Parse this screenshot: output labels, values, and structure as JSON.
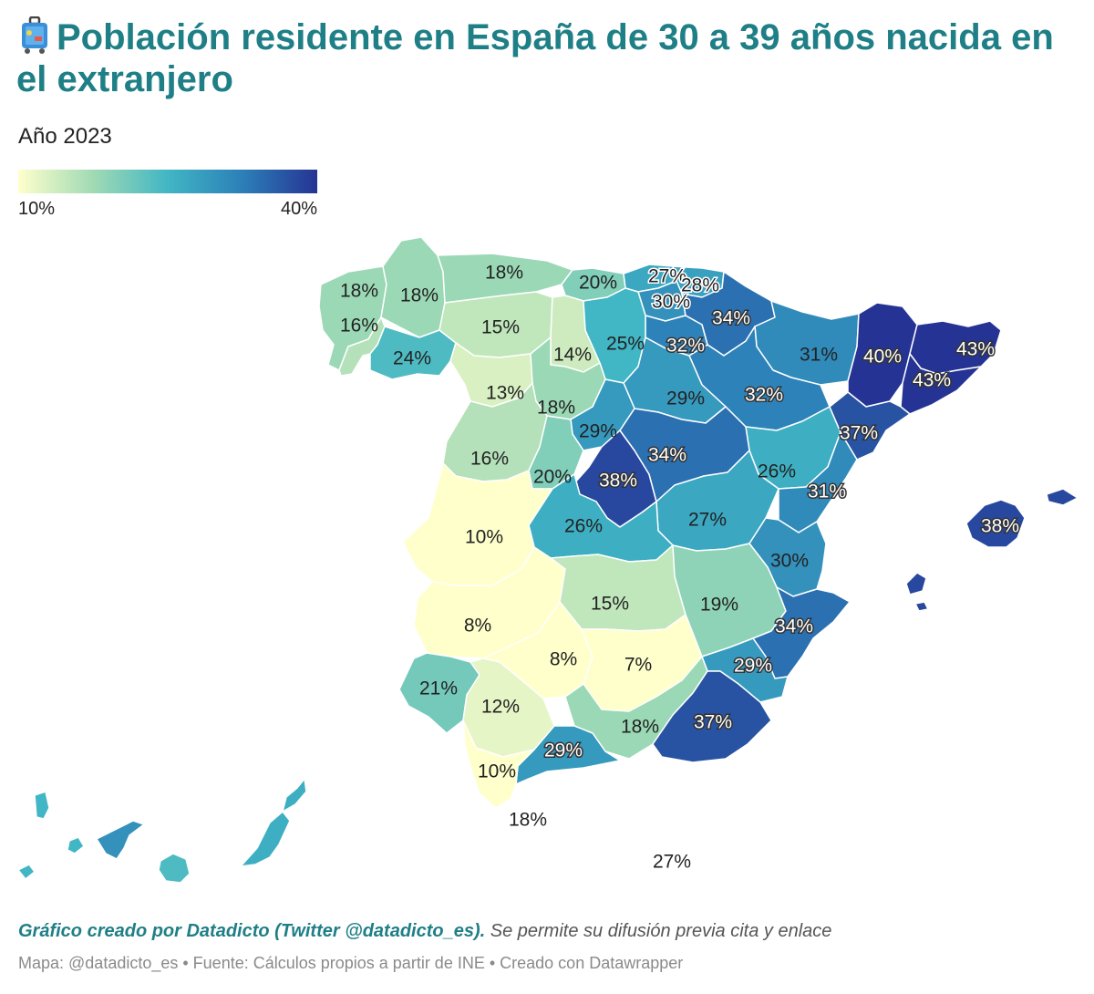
{
  "header": {
    "title": "Población residente en España de 30 a 39 años nacida en el extranjero",
    "subtitle": "Año 2023",
    "emoji_icon": "luggage-icon"
  },
  "legend": {
    "min_label": "10%",
    "max_label": "40%",
    "colors": [
      "#ffffcc",
      "#a1dab4",
      "#41b6c4",
      "#2c7fb8",
      "#253494"
    ]
  },
  "map": {
    "regions": [
      {
        "id": "a-coruna",
        "label": "18%",
        "value": 18
      },
      {
        "id": "lugo",
        "label": "18%",
        "value": 18
      },
      {
        "id": "pontevedra",
        "label": "16%",
        "value": 16
      },
      {
        "id": "ourense",
        "label": "24%",
        "value": 24
      },
      {
        "id": "asturias",
        "label": "18%",
        "value": 18
      },
      {
        "id": "cantabria",
        "label": "20%",
        "value": 20
      },
      {
        "id": "bizkaia",
        "label": "27%",
        "value": 27
      },
      {
        "id": "gipuzkoa",
        "label": "28%",
        "value": 28
      },
      {
        "id": "araba",
        "label": "30%",
        "value": 30
      },
      {
        "id": "navarra",
        "label": "34%",
        "value": 34
      },
      {
        "id": "la-rioja",
        "label": "32%",
        "value": 32
      },
      {
        "id": "huesca",
        "label": "31%",
        "value": 31
      },
      {
        "id": "lleida",
        "label": "40%",
        "value": 40
      },
      {
        "id": "girona",
        "label": "43%",
        "value": 43
      },
      {
        "id": "barcelona",
        "label": "43%",
        "value": 43
      },
      {
        "id": "tarragona",
        "label": "37%",
        "value": 37
      },
      {
        "id": "zaragoza",
        "label": "32%",
        "value": 32
      },
      {
        "id": "leon",
        "label": "15%",
        "value": 15
      },
      {
        "id": "palencia",
        "label": "14%",
        "value": 14
      },
      {
        "id": "burgos",
        "label": "25%",
        "value": 25
      },
      {
        "id": "soria",
        "label": "29%",
        "value": 29
      },
      {
        "id": "zamora",
        "label": "13%",
        "value": 13
      },
      {
        "id": "valladolid",
        "label": "18%",
        "value": 18
      },
      {
        "id": "segovia",
        "label": "29%",
        "value": 29
      },
      {
        "id": "guadalajara",
        "label": "34%",
        "value": 34
      },
      {
        "id": "teruel",
        "label": "26%",
        "value": 26
      },
      {
        "id": "castellon",
        "label": "31%",
        "value": 31
      },
      {
        "id": "salamanca",
        "label": "16%",
        "value": 16
      },
      {
        "id": "avila",
        "label": "20%",
        "value": 20
      },
      {
        "id": "madrid",
        "label": "38%",
        "value": 38
      },
      {
        "id": "cuenca",
        "label": "27%",
        "value": 27
      },
      {
        "id": "toledo",
        "label": "26%",
        "value": 26
      },
      {
        "id": "valencia",
        "label": "30%",
        "value": 30
      },
      {
        "id": "caceres",
        "label": "10%",
        "value": 10
      },
      {
        "id": "badajoz",
        "label": "8%",
        "value": 8
      },
      {
        "id": "ciudad-real",
        "label": "15%",
        "value": 15
      },
      {
        "id": "albacete",
        "label": "19%",
        "value": 19
      },
      {
        "id": "alicante",
        "label": "34%",
        "value": 34
      },
      {
        "id": "cordoba",
        "label": "8%",
        "value": 8
      },
      {
        "id": "jaen",
        "label": "7%",
        "value": 7
      },
      {
        "id": "murcia",
        "label": "29%",
        "value": 29
      },
      {
        "id": "huelva",
        "label": "21%",
        "value": 21
      },
      {
        "id": "sevilla",
        "label": "12%",
        "value": 12
      },
      {
        "id": "granada",
        "label": "18%",
        "value": 18
      },
      {
        "id": "almeria",
        "label": "37%",
        "value": 37
      },
      {
        "id": "malaga",
        "label": "29%",
        "value": 29
      },
      {
        "id": "cadiz",
        "label": "10%",
        "value": 10
      },
      {
        "id": "ceuta",
        "label": "18%",
        "value": 18
      },
      {
        "id": "melilla",
        "label": "27%",
        "value": 27
      },
      {
        "id": "baleares",
        "label": "38%",
        "value": 38
      }
    ]
  },
  "footer": {
    "credit": "Gráfico creado por Datadicto (Twitter @datadicto_es).",
    "note": " Se permite su difusión previa cita y enlace",
    "source": "Mapa: @datadicto_es • Fuente: Cálculos propios a partir de INE • Creado con Datawrapper"
  }
}
